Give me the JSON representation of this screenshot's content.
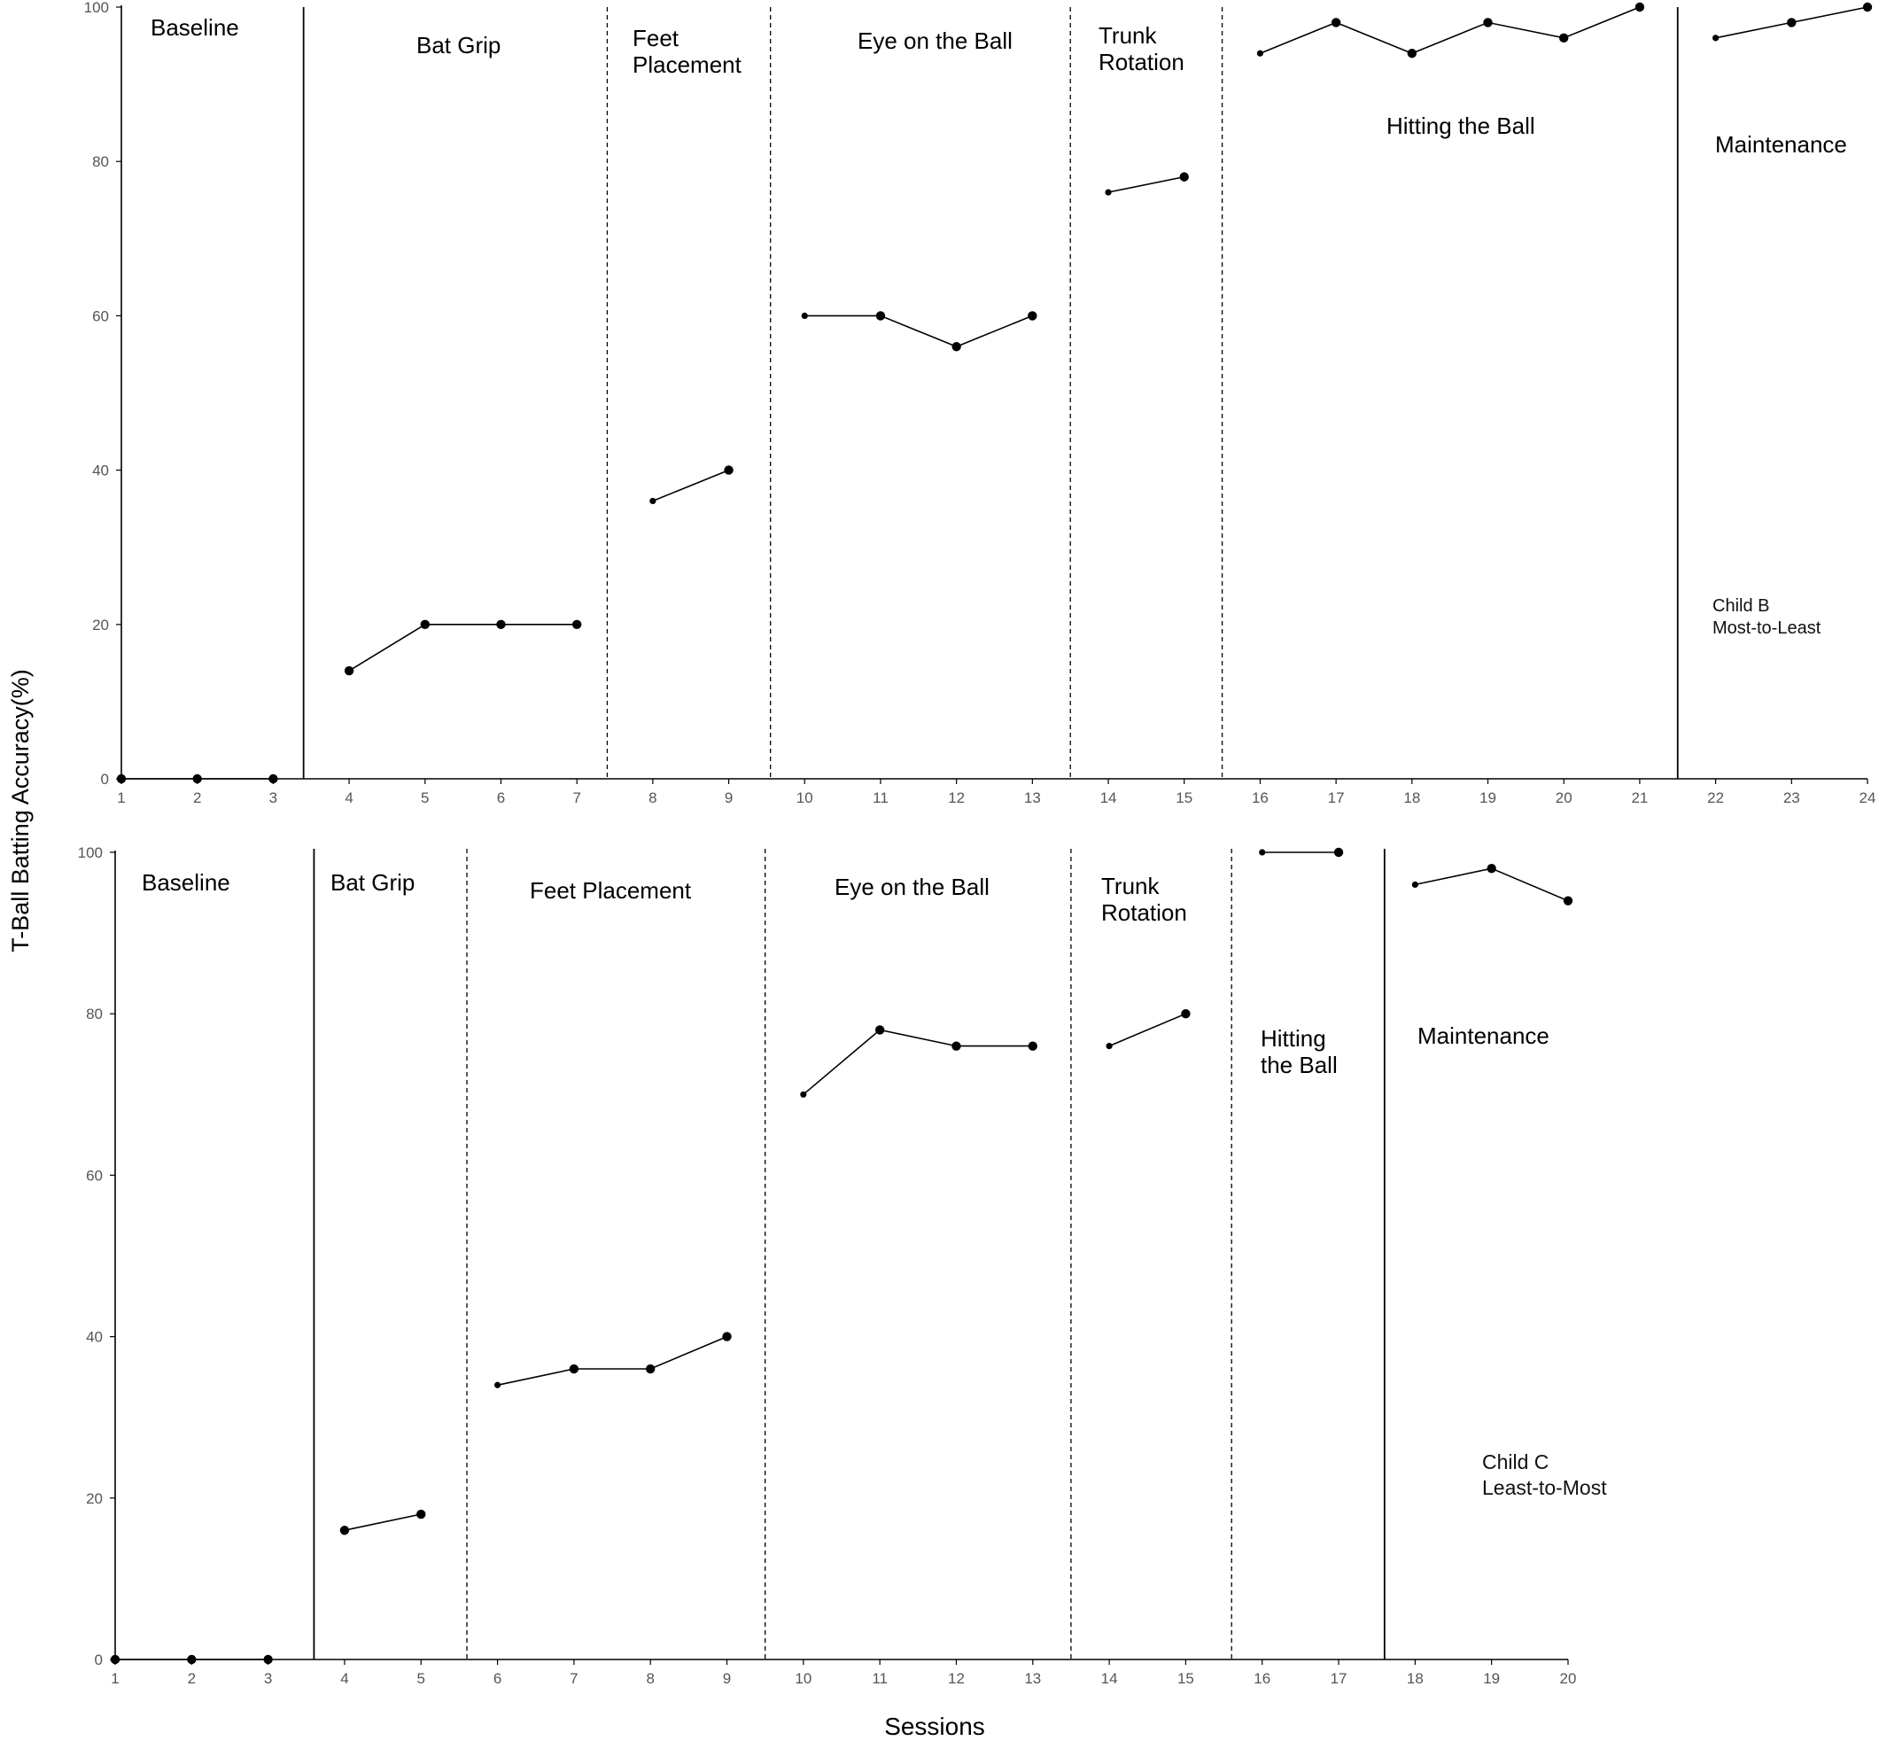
{
  "chart_data": [
    {
      "type": "line",
      "xlabel": "",
      "ylabel": "T-Ball Batting Accuracy(%)",
      "xlim": [
        1,
        24
      ],
      "ylim": [
        0,
        100
      ],
      "x_ticks": [
        1,
        2,
        3,
        4,
        5,
        6,
        7,
        8,
        9,
        10,
        11,
        12,
        13,
        14,
        15,
        16,
        17,
        18,
        19,
        20,
        21,
        22,
        23,
        24
      ],
      "y_ticks": [
        0,
        20,
        40,
        60,
        80,
        100
      ],
      "phases": [
        {
          "label_lines": [
            "Baseline"
          ],
          "sessions": [
            1,
            2,
            3
          ],
          "values": [
            0,
            0,
            0
          ],
          "boundary_after": 3.4,
          "boundary_style": "solid"
        },
        {
          "label_lines": [
            "Bat Grip"
          ],
          "sessions": [
            4,
            5,
            6,
            7
          ],
          "values": [
            14,
            20,
            20,
            20
          ],
          "boundary_after": 7.4,
          "boundary_style": "dashed"
        },
        {
          "label_lines": [
            "Feet",
            "Placement"
          ],
          "sessions": [
            8,
            9
          ],
          "values": [
            36,
            40
          ],
          "boundary_after": 9.55,
          "boundary_style": "dashed"
        },
        {
          "label_lines": [
            "Eye on the Ball"
          ],
          "sessions": [
            10,
            11,
            12,
            13
          ],
          "values": [
            60,
            60,
            56,
            60
          ],
          "boundary_after": 13.5,
          "boundary_style": "dashed"
        },
        {
          "label_lines": [
            "Trunk",
            "Rotation"
          ],
          "sessions": [
            14,
            15
          ],
          "values": [
            76,
            78
          ],
          "boundary_after": 15.5,
          "boundary_style": "dashed"
        },
        {
          "label_lines": [
            "Hitting the Ball"
          ],
          "sessions": [
            16,
            17,
            18,
            19,
            20,
            21
          ],
          "values": [
            94,
            98,
            94,
            98,
            96,
            100
          ],
          "boundary_after": 21.5,
          "boundary_style": "solid"
        },
        {
          "label_lines": [
            "Maintenance"
          ],
          "sessions": [
            22,
            23,
            24
          ],
          "values": [
            96,
            98,
            100
          ],
          "boundary_after": null,
          "boundary_style": null
        }
      ],
      "annotation_lines": [
        "Child B",
        "Most-to-Least"
      ]
    },
    {
      "type": "line",
      "xlabel": "Sessions",
      "ylabel": "T-Ball Batting Accuracy(%)",
      "xlim": [
        1,
        20
      ],
      "ylim": [
        0,
        100
      ],
      "x_ticks": [
        1,
        2,
        3,
        4,
        5,
        6,
        7,
        8,
        9,
        10,
        11,
        12,
        13,
        14,
        15,
        16,
        17,
        18,
        19,
        20
      ],
      "y_ticks": [
        0,
        20,
        40,
        60,
        80,
        100
      ],
      "phases": [
        {
          "label_lines": [
            "Baseline"
          ],
          "sessions": [
            1,
            2,
            3
          ],
          "values": [
            0,
            0,
            0
          ],
          "boundary_after": 3.6,
          "boundary_style": "solid"
        },
        {
          "label_lines": [
            "Bat Grip"
          ],
          "sessions": [
            4,
            5
          ],
          "values": [
            16,
            18
          ],
          "boundary_after": 5.6,
          "boundary_style": "dashed"
        },
        {
          "label_lines": [
            "Feet Placement"
          ],
          "sessions": [
            6,
            7,
            8,
            9
          ],
          "values": [
            34,
            36,
            36,
            40
          ],
          "boundary_after": 9.5,
          "boundary_style": "dashed"
        },
        {
          "label_lines": [
            "Eye on the Ball"
          ],
          "sessions": [
            10,
            11,
            12,
            13
          ],
          "values": [
            70,
            78,
            76,
            76
          ],
          "boundary_after": 13.5,
          "boundary_style": "dashed"
        },
        {
          "label_lines": [
            "Trunk",
            "Rotation"
          ],
          "sessions": [
            14,
            15
          ],
          "values": [
            76,
            80
          ],
          "boundary_after": 15.6,
          "boundary_style": "dashed"
        },
        {
          "label_lines": [
            "Hitting",
            "the Ball"
          ],
          "sessions": [
            16,
            17
          ],
          "values": [
            100,
            100
          ],
          "boundary_after": 17.6,
          "boundary_style": "solid"
        },
        {
          "label_lines": [
            "Maintenance"
          ],
          "sessions": [
            18,
            19,
            20
          ],
          "values": [
            96,
            98,
            94
          ],
          "boundary_after": null,
          "boundary_style": null
        }
      ],
      "annotation_lines": [
        "Child C",
        "Least-to-Most"
      ]
    }
  ]
}
